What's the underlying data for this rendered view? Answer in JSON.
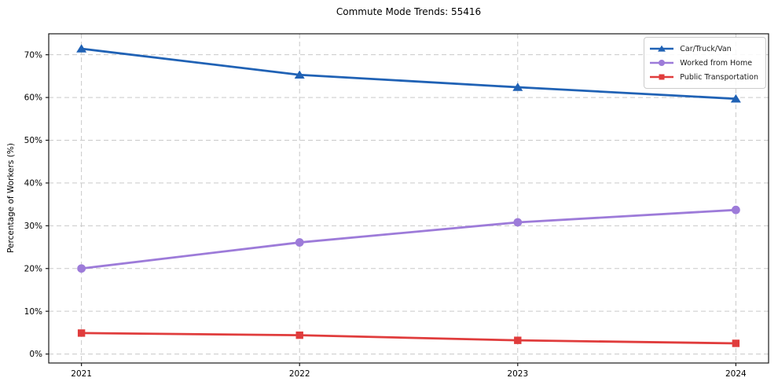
{
  "title": "Commute Mode Trends: 55416",
  "chart_data": {
    "type": "line",
    "x": [
      2021,
      2022,
      2023,
      2024
    ],
    "x_tick_labels": [
      "2021",
      "2022",
      "2023",
      "2024"
    ],
    "y_ticks": [
      0,
      10,
      20,
      30,
      40,
      50,
      60,
      70
    ],
    "y_tick_labels": [
      "0%",
      "10%",
      "20%",
      "30%",
      "40%",
      "50%",
      "60%",
      "70%"
    ],
    "xlabel": "",
    "ylabel": "Percentage of Workers (%)",
    "xlim": [
      2020.85,
      2024.15
    ],
    "ylim": [
      -2.1,
      74.9
    ],
    "grid": true,
    "grid_style": "dashed",
    "legend_position": "upper right",
    "series": [
      {
        "name": "Car/Truck/Van",
        "values": [
          71.4,
          65.3,
          62.4,
          59.7
        ],
        "color": "#2062b5",
        "marker": "triangle"
      },
      {
        "name": "Worked from Home",
        "values": [
          20.0,
          26.1,
          30.8,
          33.7
        ],
        "color": "#9d7bd9",
        "marker": "circle"
      },
      {
        "name": "Public Transportation",
        "values": [
          4.9,
          4.4,
          3.2,
          2.5
        ],
        "color": "#e03c3c",
        "marker": "square"
      }
    ]
  }
}
